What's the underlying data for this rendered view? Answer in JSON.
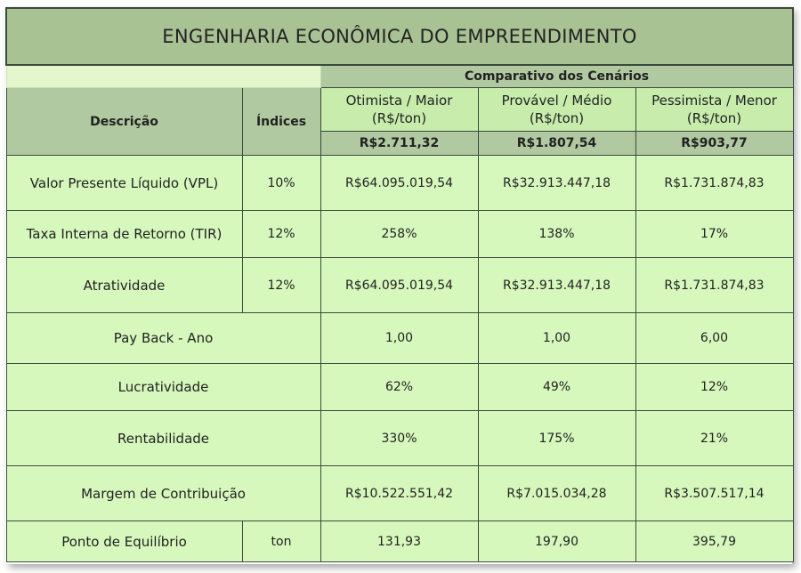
{
  "title": "ENGENHARIA ECONÔMICA DO EMPREENDIMENTO",
  "header": {
    "comparativo": "Comparativo dos Cenários",
    "descricao": "Descrição",
    "indices": "Índices",
    "scenarios": [
      {
        "line1": "Otimista / Maior",
        "line2": "(R$/ton)",
        "price": "R$2.711,32"
      },
      {
        "line1": "Provável / Médio",
        "line2": "(R$/ton)",
        "price": "R$1.807,54"
      },
      {
        "line1": "Pessimista / Menor",
        "line2": "(R$/ton)",
        "price": "R$903,77"
      }
    ]
  },
  "rows": [
    {
      "label": "Valor Presente Líquido (VPL)",
      "index": "10%",
      "values": [
        "R$64.095.019,54",
        "R$32.913.447,18",
        "R$1.731.874,83"
      ]
    },
    {
      "label": "Taxa Interna de Retorno (TIR)",
      "index": "12%",
      "values": [
        "258%",
        "138%",
        "17%"
      ]
    },
    {
      "label": "Atratividade",
      "index": "12%",
      "values": [
        "R$64.095.019,54",
        "R$32.913.447,18",
        "R$1.731.874,83"
      ]
    },
    {
      "label": "Pay Back - Ano",
      "values": [
        "1,00",
        "1,00",
        "6,00"
      ]
    },
    {
      "label": "Lucratividade",
      "values": [
        "62%",
        "49%",
        "12%"
      ]
    },
    {
      "label": "Rentabilidade",
      "values": [
        "330%",
        "175%",
        "21%"
      ]
    },
    {
      "label": "Margem de Contribuição",
      "values": [
        "R$10.522.551,42",
        "R$7.015.034,28",
        "R$3.507.517,14"
      ]
    },
    {
      "label": "Ponto de Equilíbrio",
      "index": "ton",
      "values": [
        "131,93",
        "197,90",
        "395,79"
      ]
    }
  ],
  "colors": {
    "title_bg": "#a8c294",
    "header_bg": "#b0c9a0",
    "scenario_bg": "#c7ecac",
    "cell_bg": "#d7f8bd",
    "border": "#3c4a3c"
  }
}
